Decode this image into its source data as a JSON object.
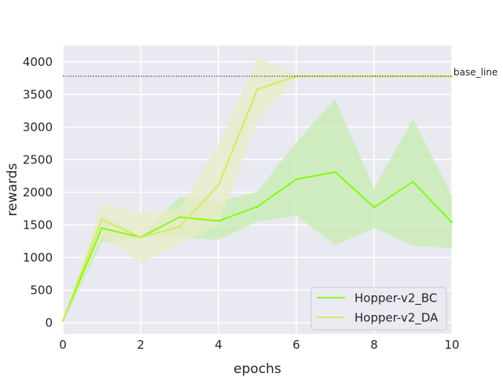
{
  "chart_data": {
    "type": "line",
    "title": "",
    "xlabel": "epochs",
    "ylabel": "rewards",
    "xlim": [
      0,
      10
    ],
    "ylim": [
      -170,
      4250
    ],
    "xticks": [
      0,
      2,
      4,
      6,
      8,
      10
    ],
    "yticks": [
      0,
      500,
      1000,
      1500,
      2000,
      2500,
      3000,
      3500,
      4000
    ],
    "grid": true,
    "legend_position": "bottom-right",
    "x": [
      0,
      1,
      2,
      3,
      4,
      5,
      6,
      7,
      8,
      9,
      10
    ],
    "series": [
      {
        "name": "Hopper-v2_BC",
        "color": "#7cfc00",
        "band_color": "#c5ecb0",
        "values": [
          30,
          1450,
          1310,
          1620,
          1560,
          1780,
          2200,
          2310,
          1770,
          2160,
          1540
        ],
        "lower": [
          0,
          1230,
          1300,
          1310,
          1270,
          1550,
          1640,
          1190,
          1450,
          1180,
          1140
        ],
        "upper": [
          60,
          1660,
          1330,
          1930,
          1850,
          2010,
          2770,
          3430,
          2060,
          3130,
          1950
        ]
      },
      {
        "name": "Hopper-v2_DA",
        "color": "#d4ea52",
        "band_color": "#e7ecc4",
        "values": [
          30,
          1580,
          1310,
          1470,
          2110,
          3580,
          3780,
          3780,
          3780,
          3780,
          3780
        ],
        "lower": [
          0,
          1320,
          920,
          1200,
          1500,
          3100,
          3750,
          3760,
          3760,
          3760,
          3760
        ],
        "upper": [
          60,
          1840,
          1680,
          1750,
          2720,
          4060,
          3800,
          3800,
          3800,
          3800,
          3800
        ]
      }
    ],
    "annotations": [
      {
        "type": "hline",
        "y": 3780,
        "style": "dotted",
        "color": "#222222",
        "label": "base_line"
      }
    ]
  },
  "colors": {
    "plot_background": "#e9e9f1",
    "grid": "#ffffff",
    "text": "#262626"
  }
}
